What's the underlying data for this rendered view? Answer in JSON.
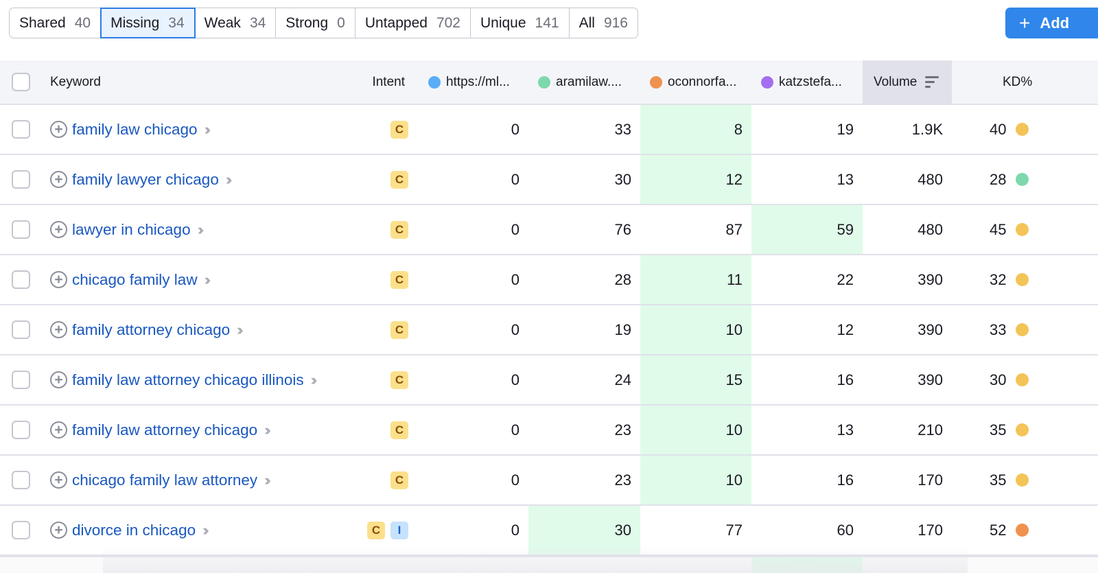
{
  "filter_tabs": [
    {
      "label": "Shared",
      "count": "40",
      "active": false
    },
    {
      "label": "Missing",
      "count": "34",
      "active": true
    },
    {
      "label": "Weak",
      "count": "34",
      "active": false
    },
    {
      "label": "Strong",
      "count": "0",
      "active": false
    },
    {
      "label": "Untapped",
      "count": "702",
      "active": false
    },
    {
      "label": "Unique",
      "count": "141",
      "active": false
    },
    {
      "label": "All",
      "count": "916",
      "active": false
    }
  ],
  "add_button": {
    "icon": "plus-icon",
    "label": "Add"
  },
  "table": {
    "columns": {
      "keyword": "Keyword",
      "intent": "Intent",
      "domain1": {
        "label": "https://ml...",
        "color": "#5aacf5"
      },
      "domain2": {
        "label": "aramilaw....",
        "color": "#7ed8ad"
      },
      "domain3": {
        "label": "oconnorfa...",
        "color": "#f0914f"
      },
      "domain4": {
        "label": "katzstefa...",
        "color": "#a46ef0"
      },
      "volume": "Volume",
      "kd": "KD%"
    },
    "sort": {
      "column": "volume",
      "icon": "sort-descending-icon"
    },
    "rows": [
      {
        "keyword": "family law chicago",
        "intents": [
          "C"
        ],
        "d1": "0",
        "d2": "33",
        "d3": "8",
        "d4": "19",
        "volume": "1.9K",
        "kd": "40",
        "kd_color": "#f3c457",
        "highlight": "d3"
      },
      {
        "keyword": "family lawyer chicago",
        "intents": [
          "C"
        ],
        "d1": "0",
        "d2": "30",
        "d3": "12",
        "d4": "13",
        "volume": "480",
        "kd": "28",
        "kd_color": "#7ed8ad",
        "highlight": "d3"
      },
      {
        "keyword": "lawyer in chicago",
        "intents": [
          "C"
        ],
        "d1": "0",
        "d2": "76",
        "d3": "87",
        "d4": "59",
        "volume": "480",
        "kd": "45",
        "kd_color": "#f3c457",
        "highlight": "d4"
      },
      {
        "keyword": "chicago family law",
        "intents": [
          "C"
        ],
        "d1": "0",
        "d2": "28",
        "d3": "11",
        "d4": "22",
        "volume": "390",
        "kd": "32",
        "kd_color": "#f3c457",
        "highlight": "d3"
      },
      {
        "keyword": "family attorney chicago",
        "intents": [
          "C"
        ],
        "d1": "0",
        "d2": "19",
        "d3": "10",
        "d4": "12",
        "volume": "390",
        "kd": "33",
        "kd_color": "#f3c457",
        "highlight": "d3"
      },
      {
        "keyword": "family law attorney chicago illinois",
        "intents": [
          "C"
        ],
        "d1": "0",
        "d2": "24",
        "d3": "15",
        "d4": "16",
        "volume": "390",
        "kd": "30",
        "kd_color": "#f3c457",
        "highlight": "d3"
      },
      {
        "keyword": "family law attorney chicago",
        "intents": [
          "C"
        ],
        "d1": "0",
        "d2": "23",
        "d3": "10",
        "d4": "13",
        "volume": "210",
        "kd": "35",
        "kd_color": "#f3c457",
        "highlight": "d3"
      },
      {
        "keyword": "chicago family law attorney",
        "intents": [
          "C"
        ],
        "d1": "0",
        "d2": "23",
        "d3": "10",
        "d4": "16",
        "volume": "170",
        "kd": "35",
        "kd_color": "#f3c457",
        "highlight": "d3"
      },
      {
        "keyword": "divorce in chicago",
        "intents": [
          "C",
          "I"
        ],
        "d1": "0",
        "d2": "30",
        "d3": "77",
        "d4": "60",
        "volume": "170",
        "kd": "52",
        "kd_color": "#f0914f",
        "highlight": "d2"
      }
    ]
  }
}
